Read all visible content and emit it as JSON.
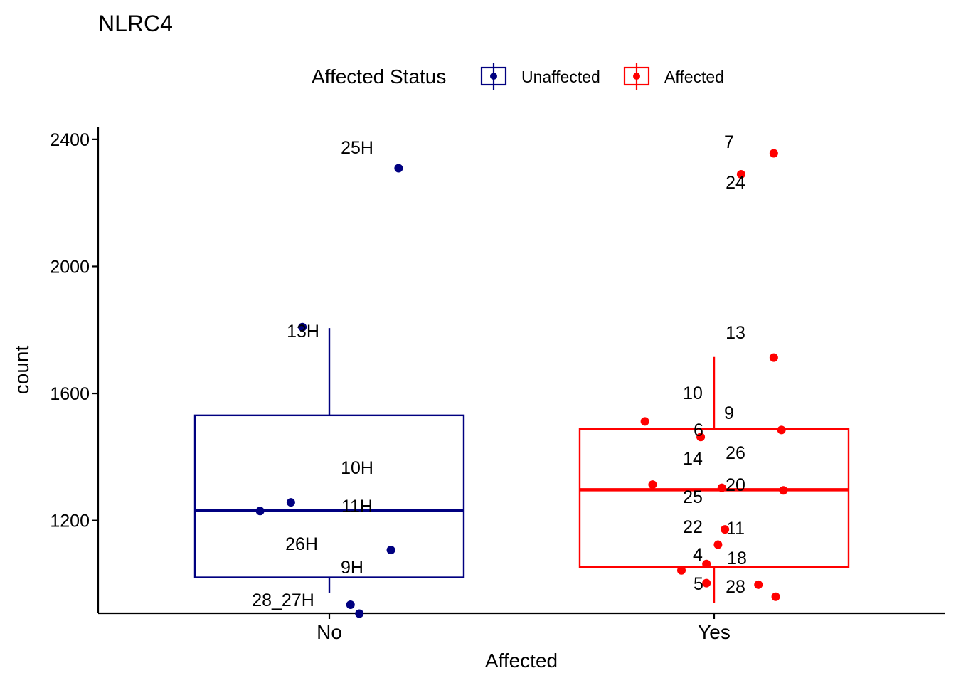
{
  "chart_data": {
    "type": "box",
    "title": "NLRC4",
    "xlabel": "Affected",
    "ylabel": "count",
    "categories": [
      "No",
      "Yes"
    ],
    "yticks": [
      1200,
      1600,
      2000,
      2400
    ],
    "ylim": [
      908,
      2440
    ],
    "legend": {
      "title": "Affected Status",
      "position": "top",
      "entries": [
        {
          "label": "Unaffected",
          "color": "#000080"
        },
        {
          "label": "Affected",
          "color": "#ff0000"
        }
      ]
    },
    "series": [
      {
        "name": "Unaffected",
        "category": "No",
        "color": "#000080",
        "box": {
          "lower_whisker": 973,
          "q1": 1021,
          "median": 1232,
          "q3": 1531,
          "upper_whisker": 1806
        },
        "points": [
          {
            "label": "25H",
            "value": 2309,
            "jitter": 0.18
          },
          {
            "label": "13H",
            "value": 1809,
            "jitter": -0.07
          },
          {
            "label": "10H",
            "value": 1257,
            "jitter": -0.1
          },
          {
            "label": "",
            "value": 1230,
            "jitter": -0.18
          },
          {
            "label": "11H",
            "value": 1107,
            "jitter": 0.16
          },
          {
            "label": "26H",
            "value": 1007,
            "jitter": 0.0,
            "no_marker": true
          },
          {
            "label": "9H",
            "value": 935,
            "jitter": 0.055
          },
          {
            "label": "28_27H",
            "value": 907,
            "jitter": 0.078
          }
        ]
      },
      {
        "name": "Affected",
        "category": "Yes",
        "color": "#ff0000",
        "box": {
          "lower_whisker": 941,
          "q1": 1054,
          "median": 1297,
          "q3": 1488,
          "upper_whisker": 1715
        },
        "points": [
          {
            "label": "7",
            "value": 2356,
            "jitter": 0.155
          },
          {
            "label": "24",
            "value": 2290,
            "jitter": 0.07
          },
          {
            "label": "13",
            "value": 1713,
            "jitter": 0.155
          },
          {
            "label": "10",
            "value": 1512,
            "jitter": -0.18
          },
          {
            "label": "9",
            "value": 1485,
            "jitter": 0.175
          },
          {
            "label": "6",
            "value": 1463,
            "jitter": -0.035
          },
          {
            "label": "14",
            "value": 1313,
            "jitter": -0.16
          },
          {
            "label": "26",
            "value": 1303,
            "jitter": 0.02
          },
          {
            "label": "20",
            "value": 1295,
            "jitter": 0.18
          },
          {
            "label": "25",
            "value": 1172,
            "jitter": 0.028
          },
          {
            "label": "11",
            "value": 1124,
            "jitter": 0.01
          },
          {
            "label": "22",
            "value": 1063,
            "jitter": -0.02
          },
          {
            "label": "",
            "value": 1043,
            "jitter": -0.085
          },
          {
            "label": "4",
            "value": 1003,
            "jitter": -0.02
          },
          {
            "label": "18",
            "value": 998,
            "jitter": 0.115
          },
          {
            "label": "28",
            "value": 960,
            "jitter": 0.16
          },
          {
            "label": "5",
            "value": 940,
            "jitter": 0.0,
            "no_marker": true
          }
        ]
      }
    ]
  }
}
